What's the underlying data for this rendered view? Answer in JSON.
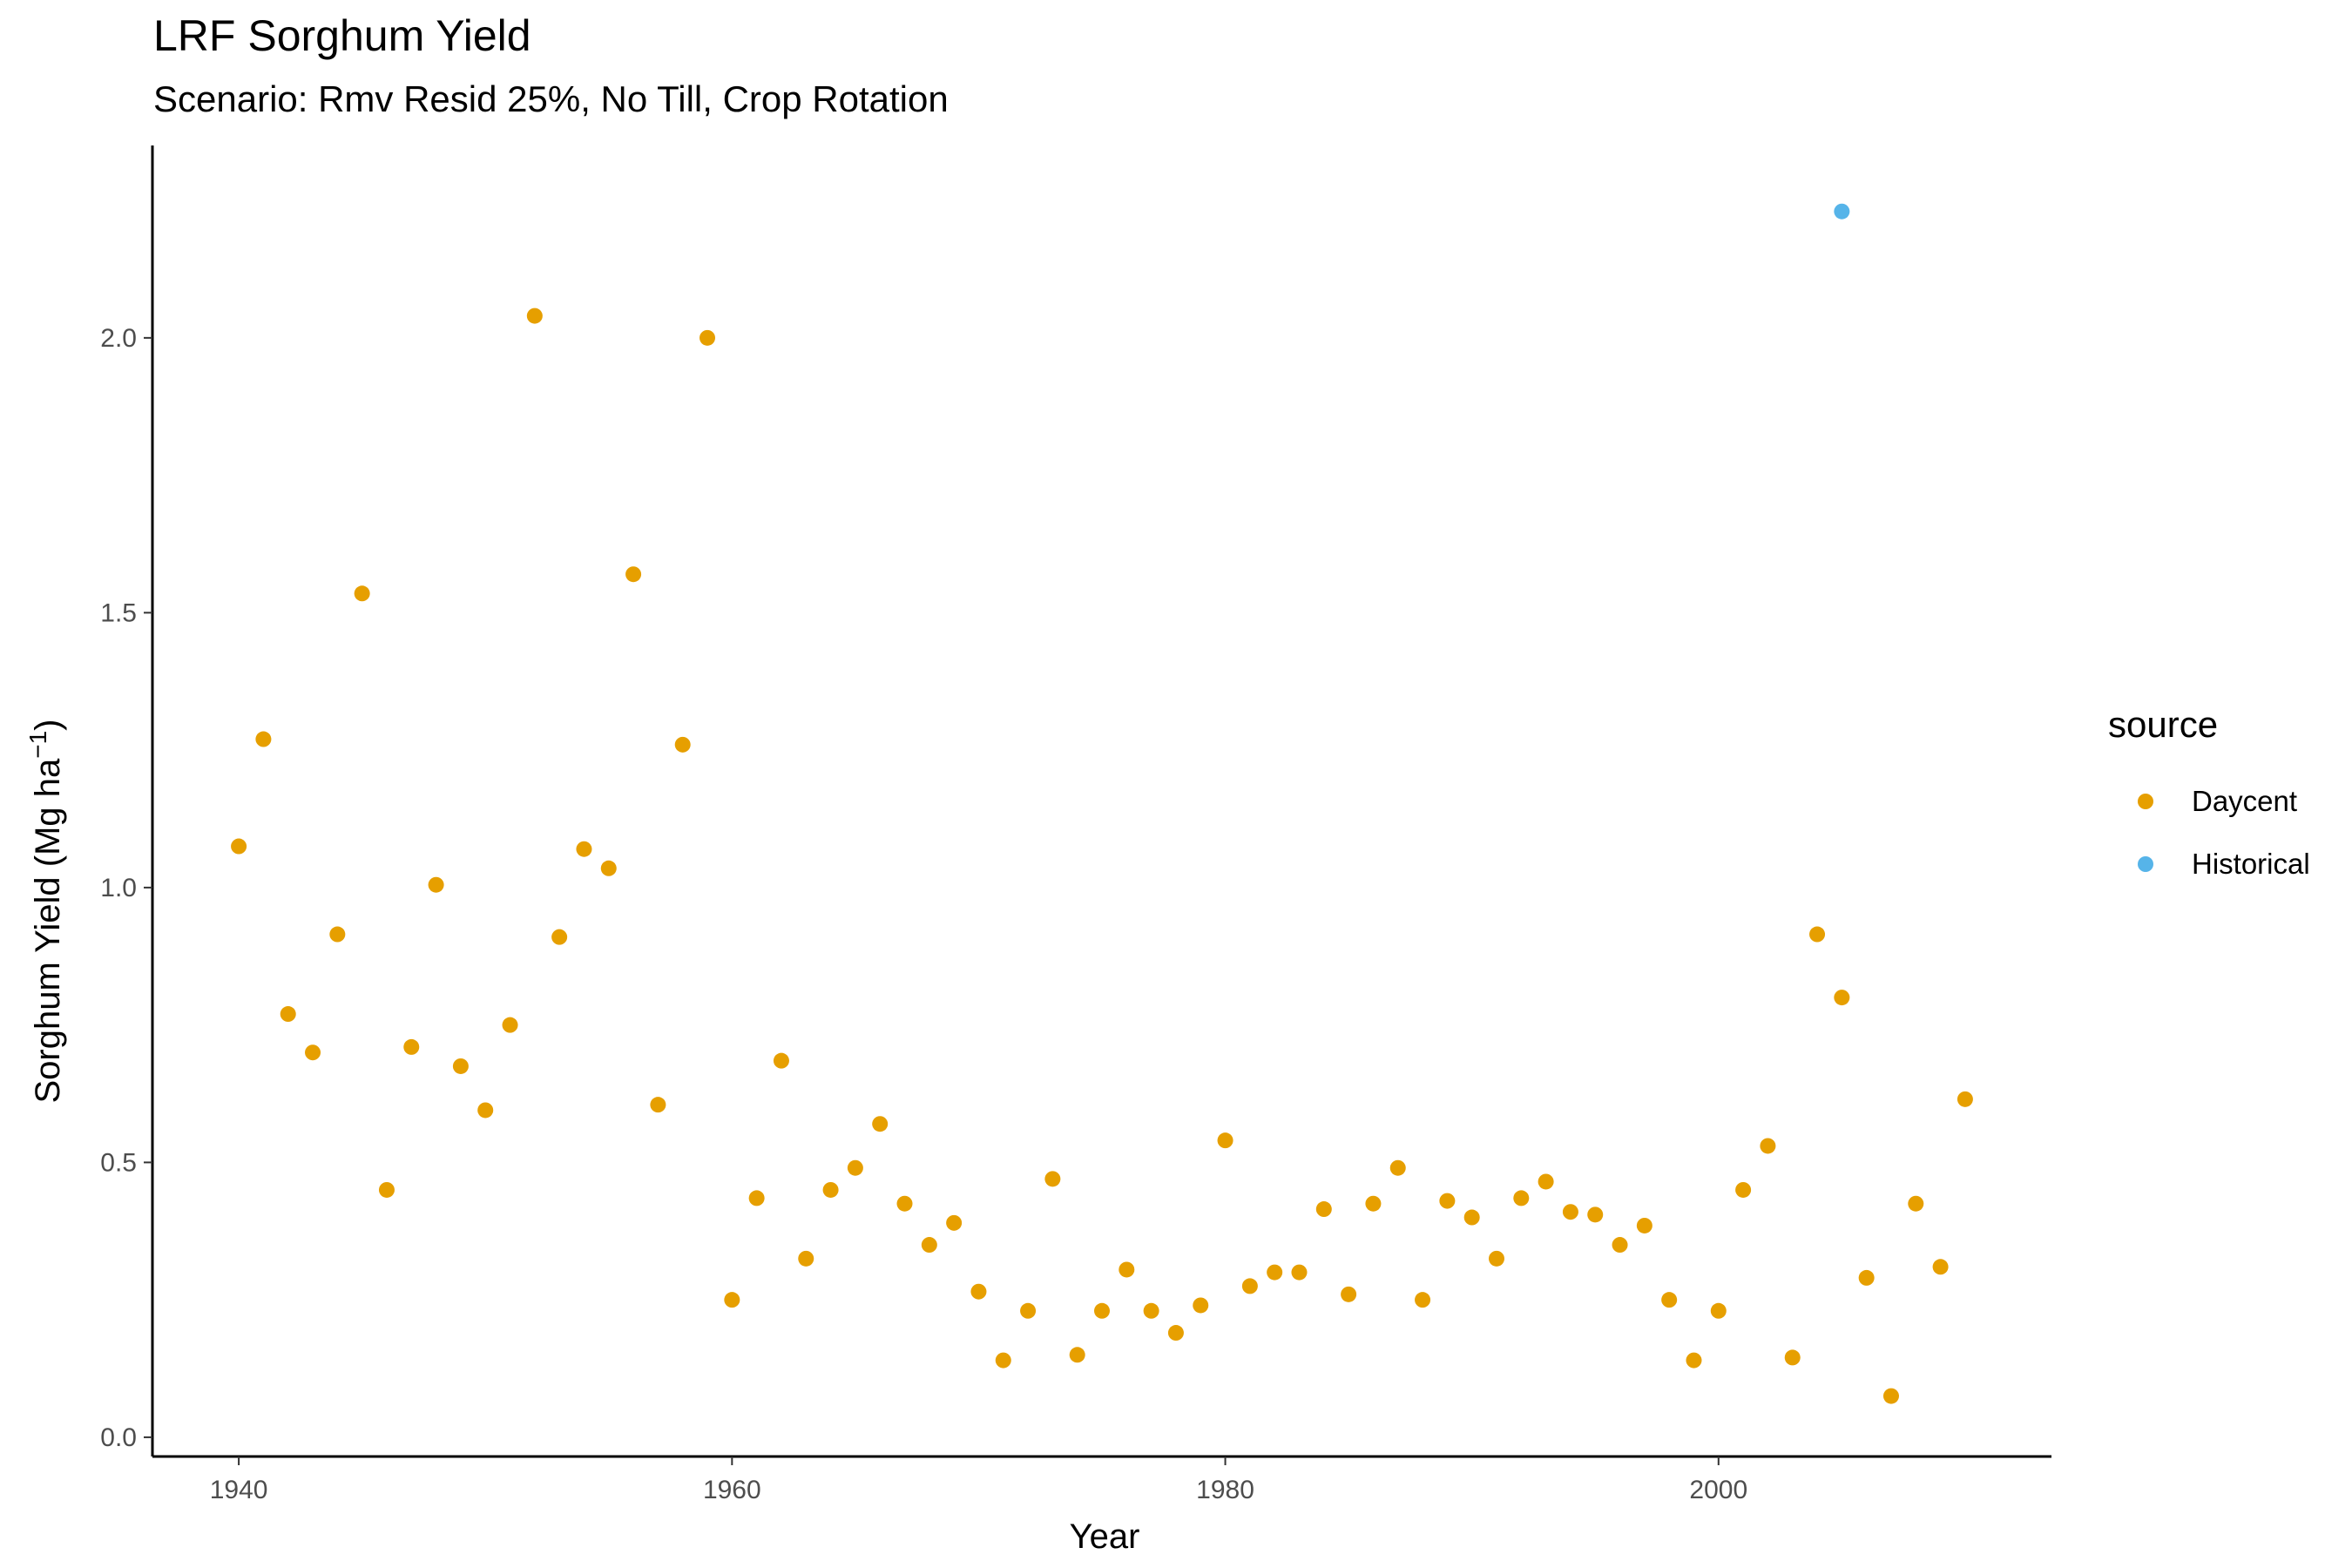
{
  "chart_data": {
    "type": "scatter",
    "title": "LRF Sorghum Yield",
    "subtitle": "Scenario: Rmv Resid 25%, No Till, Crop Rotation",
    "xlabel": "Year",
    "ylabel": "Sorghum Yield (Mg ha",
    "ylabel_superscript": "−1",
    "ylabel_close": ")",
    "xlim": [
      1936.5,
      2013.5
    ],
    "ylim": [
      -0.035,
      2.35
    ],
    "x_ticks": [
      1940,
      1960,
      1980,
      2000
    ],
    "y_ticks": [
      0.0,
      0.5,
      1.0,
      1.5,
      2.0
    ],
    "y_tick_labels": [
      "0.0",
      "0.5",
      "1.0",
      "1.5",
      "2.0"
    ],
    "grid": false,
    "legend": {
      "title": "source",
      "position": "right",
      "entries": [
        {
          "label": "Daycent",
          "color": "#E69F00"
        },
        {
          "label": "Historical",
          "color": "#56B4E9"
        }
      ]
    },
    "series": [
      {
        "name": "Daycent",
        "color": "#E69F00",
        "points": [
          [
            1940,
            1.075
          ],
          [
            1941,
            1.27
          ],
          [
            1942,
            0.77
          ],
          [
            1943,
            0.7
          ],
          [
            1944,
            0.915
          ],
          [
            1945,
            1.535
          ],
          [
            1946,
            0.45
          ],
          [
            1947,
            0.71
          ],
          [
            1948,
            1.005
          ],
          [
            1949,
            0.675
          ],
          [
            1950,
            0.595
          ],
          [
            1951,
            0.75
          ],
          [
            1952,
            2.04
          ],
          [
            1953,
            0.91
          ],
          [
            1954,
            1.07
          ],
          [
            1955,
            1.035
          ],
          [
            1956,
            1.57
          ],
          [
            1957,
            0.605
          ],
          [
            1958,
            1.26
          ],
          [
            1959,
            2.0
          ],
          [
            1960,
            0.25
          ],
          [
            1961,
            0.435
          ],
          [
            1962,
            0.685
          ],
          [
            1963,
            0.325
          ],
          [
            1964,
            0.45
          ],
          [
            1965,
            0.49
          ],
          [
            1966,
            0.57
          ],
          [
            1967,
            0.425
          ],
          [
            1968,
            0.35
          ],
          [
            1969,
            0.39
          ],
          [
            1970,
            0.265
          ],
          [
            1971,
            0.14
          ],
          [
            1972,
            0.23
          ],
          [
            1973,
            0.47
          ],
          [
            1974,
            0.15
          ],
          [
            1975,
            0.23
          ],
          [
            1976,
            0.305
          ],
          [
            1977,
            0.23
          ],
          [
            1978,
            0.19
          ],
          [
            1979,
            0.24
          ],
          [
            1980,
            0.54
          ],
          [
            1981,
            0.275
          ],
          [
            1982,
            0.3
          ],
          [
            1983,
            0.3
          ],
          [
            1984,
            0.415
          ],
          [
            1985,
            0.26
          ],
          [
            1986,
            0.425
          ],
          [
            1987,
            0.49
          ],
          [
            1988,
            0.25
          ],
          [
            1989,
            0.43
          ],
          [
            1990,
            0.4
          ],
          [
            1991,
            0.325
          ],
          [
            1992,
            0.435
          ],
          [
            1993,
            0.465
          ],
          [
            1994,
            0.41
          ],
          [
            1995,
            0.405
          ],
          [
            1996,
            0.35
          ],
          [
            1997,
            0.385
          ],
          [
            1998,
            0.25
          ],
          [
            1999,
            0.14
          ],
          [
            2000,
            0.23
          ],
          [
            2001,
            0.45
          ],
          [
            2002,
            0.53
          ],
          [
            2003,
            0.145
          ],
          [
            2004,
            0.915
          ],
          [
            2005,
            0.8
          ],
          [
            2006,
            0.29
          ],
          [
            2007,
            0.075
          ],
          [
            2008,
            0.425
          ],
          [
            2009,
            0.31
          ],
          [
            2010,
            0.615
          ]
        ]
      },
      {
        "name": "Historical",
        "color": "#56B4E9",
        "points": [
          [
            2005,
            2.23
          ]
        ]
      }
    ]
  }
}
